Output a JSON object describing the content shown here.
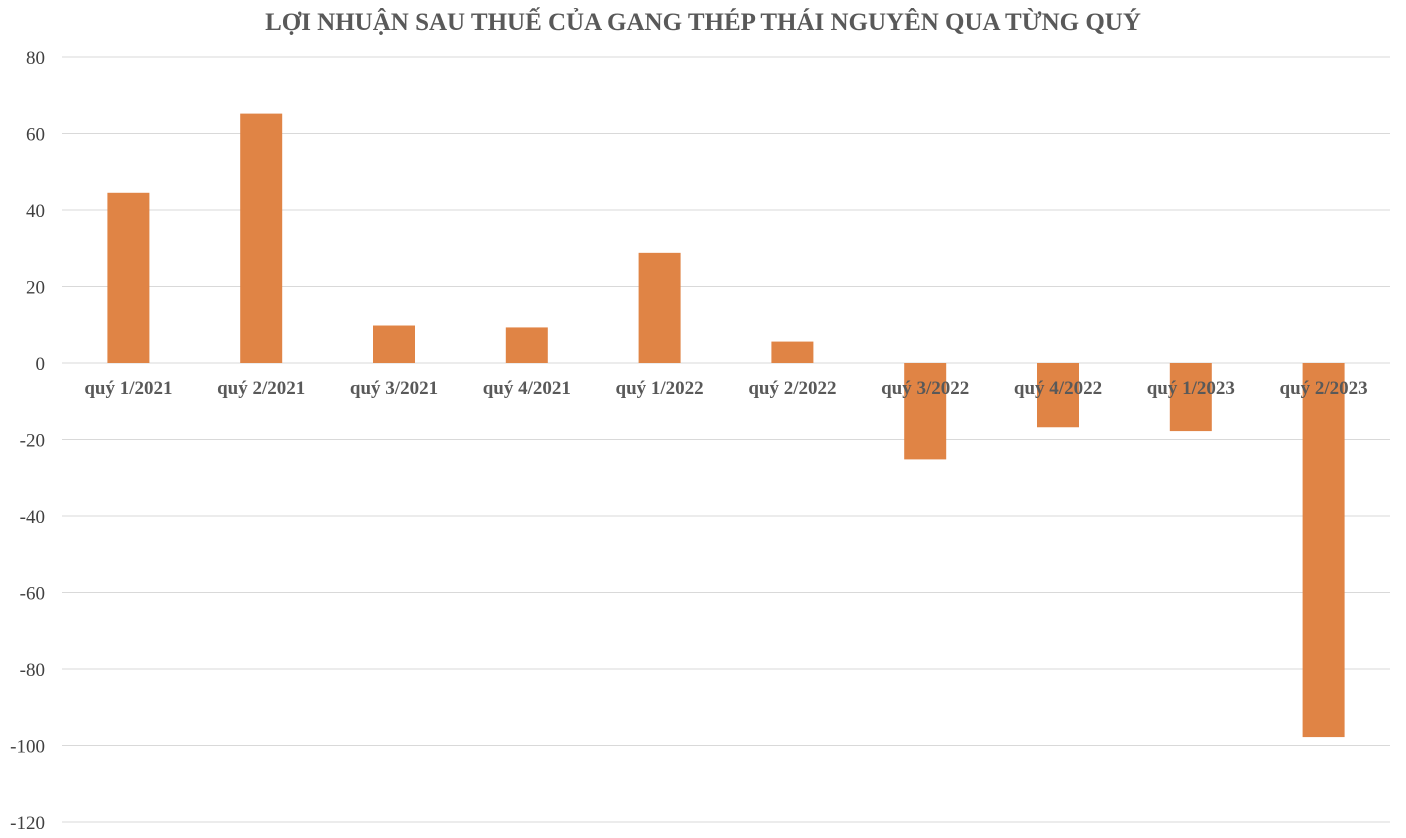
{
  "chart_data": {
    "type": "bar",
    "title": "LỢI NHUẬN SAU THUẾ CỦA GANG THÉP THÁI NGUYÊN QUA TỪNG QUÝ",
    "xlabel": "",
    "ylabel": "",
    "categories": [
      "quý 1/2021",
      "quý 2/2021",
      "quý 3/2021",
      "quý 4/2021",
      "quý 1/2022",
      "quý 2/2022",
      "quý 3/2022",
      "quý 4/2022",
      "quý 1/2023",
      "quý 2/2023"
    ],
    "series": [
      {
        "values": [
          44.5,
          65.2,
          9.8,
          9.3,
          28.8,
          5.6,
          -25.2,
          -16.8,
          -17.8,
          -97.8
        ],
        "color": "#E08445"
      }
    ],
    "ylim": [
      -120,
      80
    ],
    "yticks": [
      80,
      60,
      40,
      20,
      0,
      -20,
      -40,
      -60,
      -80,
      -100,
      -120
    ],
    "grid": true,
    "legend": "none",
    "colors": {
      "bar": "#E08445",
      "grid": "#D9D9D9",
      "title": "#595959",
      "axis_text": "#404040"
    }
  }
}
